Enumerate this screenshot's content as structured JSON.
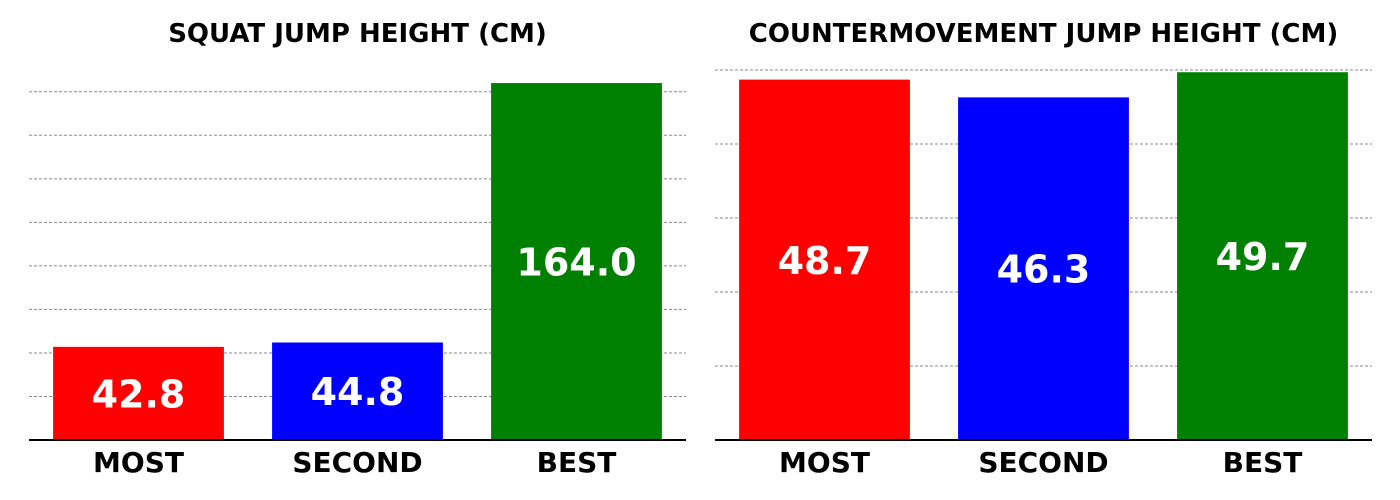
{
  "chart_data": [
    {
      "type": "bar",
      "title": "SQUAT JUMP HEIGHT (CM)",
      "categories": [
        "MOST",
        "SECOND",
        "BEST"
      ],
      "values": [
        42.8,
        44.8,
        164.0
      ],
      "value_labels": [
        "42.8",
        "44.8",
        "164.0"
      ],
      "colors": [
        "#ff0000",
        "#0000ff",
        "#008000"
      ],
      "xlabel": "",
      "ylabel": "",
      "ylim": [
        0,
        170
      ],
      "grid": true,
      "gridlines": [
        20,
        40,
        60,
        80,
        100,
        120,
        140,
        160
      ],
      "y_tick_labels": false
    },
    {
      "type": "bar",
      "title": "COUNTERMOVEMENT JUMP HEIGHT (CM)",
      "categories": [
        "MOST",
        "SECOND",
        "BEST"
      ],
      "values": [
        48.7,
        46.3,
        49.7
      ],
      "value_labels": [
        "48.7",
        "46.3",
        "49.7"
      ],
      "colors": [
        "#ff0000",
        "#0000ff",
        "#008000"
      ],
      "xlabel": "",
      "ylabel": "",
      "ylim": [
        0,
        50
      ],
      "grid": true,
      "gridlines": [
        10,
        20,
        30,
        40,
        50
      ],
      "y_tick_labels": false
    }
  ]
}
